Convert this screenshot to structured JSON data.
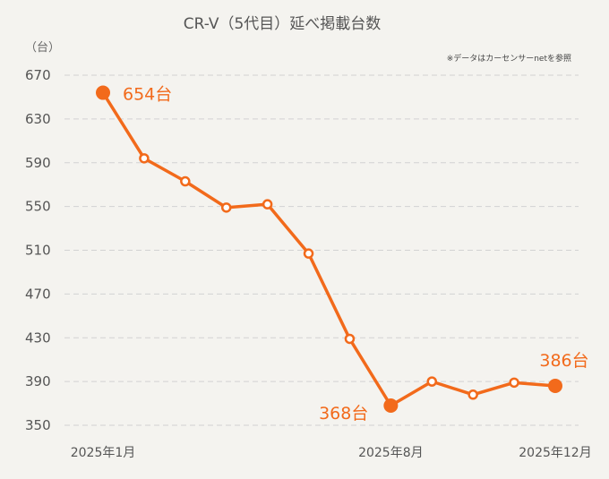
{
  "chart_data": {
    "type": "line",
    "title": "CR-V（5代目）延べ掲載台数",
    "note": "※データはカーセンサーnetを参照",
    "y_unit": "（台）",
    "ylim": [
      350,
      670
    ],
    "y_ticks": [
      350,
      390,
      430,
      470,
      510,
      550,
      590,
      630,
      670
    ],
    "grid": true,
    "x": [
      "2025年1月",
      "2025年2月",
      "2025年3月",
      "2025年4月",
      "2025年5月",
      "2025年6月",
      "2025年7月",
      "2025年8月",
      "2025年9月",
      "2025年10月",
      "2025年11月",
      "2025年12月"
    ],
    "x_tick_labels": [
      {
        "index": 0,
        "label": "2025年1月"
      },
      {
        "index": 7,
        "label": "2025年8月"
      },
      {
        "index": 11,
        "label": "2025年12月"
      }
    ],
    "series": [
      {
        "values": [
          654,
          594,
          573,
          549,
          552,
          507,
          429,
          368,
          390,
          378,
          389,
          386
        ],
        "color": "#f26a1b"
      }
    ],
    "annotations": [
      {
        "index": 0,
        "text": "654台"
      },
      {
        "index": 7,
        "text": "368台"
      },
      {
        "index": 11,
        "text": "386台"
      }
    ]
  }
}
